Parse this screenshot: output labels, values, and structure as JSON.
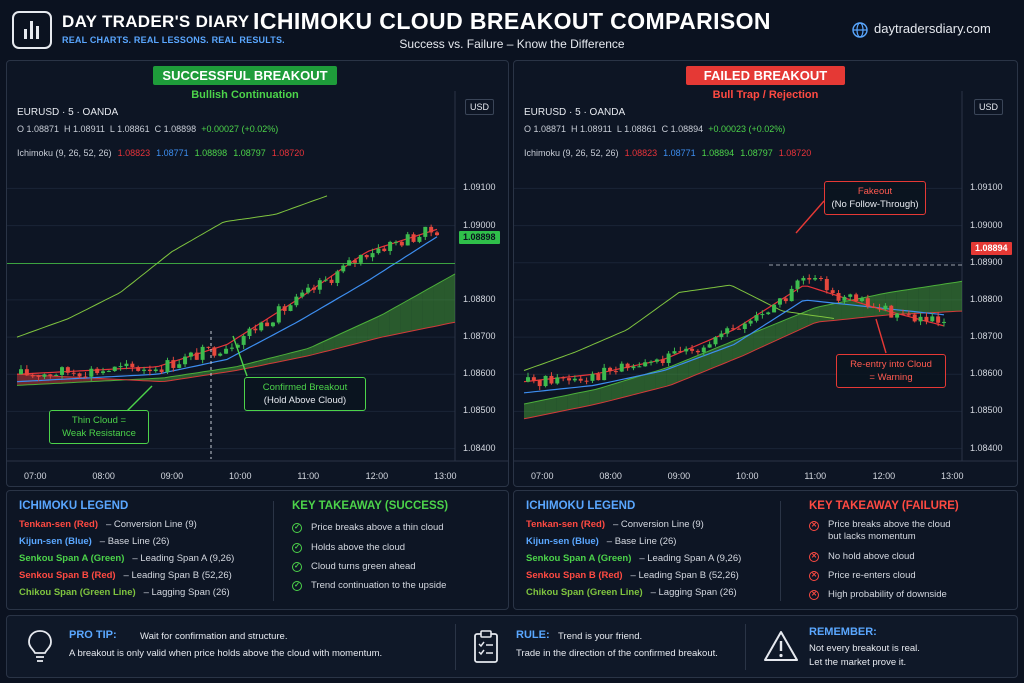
{
  "header": {
    "brand_name": "DAY TRADER'S DIARY",
    "brand_tagline": "REAL CHARTS. REAL LESSONS. REAL RESULTS.",
    "title": "ICHIMOKU CLOUD BREAKOUT COMPARISON",
    "subtitle": "Success vs. Failure – Know the Difference",
    "website": "daytradersdiary.com"
  },
  "colors": {
    "background": "#0b1220",
    "accent_blue": "#5aa7ff",
    "tenkan": "#e8333a",
    "kijun": "#3d8ef0",
    "span_a": "#4caf3a",
    "span_b": "#d33a3a",
    "chikou": "#7fc43f",
    "bull_candle": "#3dbb4e",
    "bear_candle": "#e5483d",
    "success": "#1e9c3a",
    "failure": "#e53935"
  },
  "left_panel": {
    "badge": "SUCCESSFUL BREAKOUT",
    "subtitle": "Bullish Continuation",
    "symbol": "EURUSD · 5 · OANDA",
    "ohlc": {
      "o": "O 1.08871",
      "h": "H 1.08911",
      "l": "L 1.08861",
      "c": "C 1.08898",
      "chg": "+0.00027 (+0.02%)"
    },
    "ichimoku": {
      "label": "Ichimoku (9, 26, 52, 26)",
      "v1": "1.08823",
      "v2": "1.08771",
      "v3": "1.08898",
      "v4": "1.08797",
      "v5": "1.08720"
    },
    "currency": "USD",
    "price_tag": "1.08898",
    "annotations": {
      "breakout_line1": "Confirmed Breakout",
      "breakout_line2": "(Hold Above Cloud)",
      "thin_line1": "Thin Cloud =",
      "thin_line2": "Weak Resistance"
    }
  },
  "right_panel": {
    "badge": "FAILED BREAKOUT",
    "subtitle": "Bull Trap / Rejection",
    "symbol": "EURUSD · 5 · OANDA",
    "ohlc": {
      "o": "O 1.08871",
      "h": "H 1.08911",
      "l": "L 1.08861",
      "c": "C 1.08894",
      "chg": "+0.00023 (+0.02%)"
    },
    "ichimoku": {
      "label": "Ichimoku (9, 26, 52, 26)",
      "v1": "1.08823",
      "v2": "1.08771",
      "v3": "1.08894",
      "v4": "1.08797",
      "v5": "1.08720"
    },
    "currency": "USD",
    "price_tag": "1.08894",
    "annotations": {
      "fake_line1": "Fakeout",
      "fake_line2": "(No Follow-Through)",
      "reentry_line1": "Re-entry into Cloud",
      "reentry_line2": "= Warning"
    }
  },
  "chart_data": [
    {
      "type": "line",
      "title": "SUCCESSFUL BREAKOUT",
      "subtitle": "Bullish Continuation",
      "x": [
        "07:00",
        "08:00",
        "09:00",
        "10:00",
        "11:00",
        "12:00",
        "13:00"
      ],
      "y_ticks": [
        "1.08400",
        "1.08500",
        "1.08600",
        "1.08700",
        "1.08800",
        "1.09000",
        "1.09100"
      ],
      "ylim": [
        1.0838,
        1.0912
      ],
      "last_price": 1.08898,
      "series": [
        {
          "name": "Tenkan-sen (Red)",
          "values": [
            1.086,
            1.0861,
            1.0862,
            1.0868,
            1.088,
            1.0893,
            1.0899
          ]
        },
        {
          "name": "Kijun-sen (Blue)",
          "values": [
            1.0858,
            1.0859,
            1.086,
            1.0864,
            1.0874,
            1.0885,
            1.0897
          ]
        },
        {
          "name": "Senkou Span A (Green)",
          "values": [
            1.0857,
            1.0858,
            1.0859,
            1.0862,
            1.0867,
            1.0876,
            1.0887
          ]
        },
        {
          "name": "Senkou Span B (Red)",
          "values": [
            1.086,
            1.0859,
            1.0858,
            1.0861,
            1.0865,
            1.087,
            1.0874
          ]
        },
        {
          "name": "Chikou Span (Green Line)",
          "values": [
            1.087,
            1.0875,
            1.0882,
            1.0893,
            1.0901,
            1.0903,
            1.0908
          ]
        }
      ]
    },
    {
      "type": "line",
      "title": "FAILED BREAKOUT",
      "subtitle": "Bull Trap / Rejection",
      "x": [
        "07:00",
        "08:00",
        "09:00",
        "10:00",
        "11:00",
        "12:00",
        "13:00"
      ],
      "y_ticks": [
        "1.08400",
        "1.08500",
        "1.08600",
        "1.08700",
        "1.08800",
        "1.08900",
        "1.09000",
        "1.09100"
      ],
      "ylim": [
        1.0838,
        1.0912
      ],
      "last_price": 1.08894,
      "series": [
        {
          "name": "Tenkan-sen (Red)",
          "values": [
            1.0858,
            1.086,
            1.0864,
            1.0872,
            1.0884,
            1.0878,
            1.0873
          ]
        },
        {
          "name": "Kijun-sen (Blue)",
          "values": [
            1.0855,
            1.0857,
            1.0861,
            1.0868,
            1.088,
            1.0878,
            1.0876
          ]
        },
        {
          "name": "Senkou Span A (Green)",
          "values": [
            1.0852,
            1.0856,
            1.0862,
            1.087,
            1.0878,
            1.0882,
            1.0885
          ]
        },
        {
          "name": "Senkou Span B (Red)",
          "values": [
            1.0848,
            1.0852,
            1.0857,
            1.0865,
            1.0874,
            1.0876,
            1.0877
          ]
        },
        {
          "name": "Chikou Span (Green Line)",
          "values": [
            1.0861,
            1.0866,
            1.0872,
            1.0882,
            1.0884,
            1.0877,
            1.0875
          ]
        }
      ]
    }
  ],
  "legend_left": {
    "title": "ICHIMOKU LEGEND",
    "rows": [
      {
        "name": "Tenkan-sen (Red)",
        "desc": "– Conversion Line (9)"
      },
      {
        "name": "Kijun-sen (Blue)",
        "desc": "– Base Line (26)"
      },
      {
        "name": "Senkou Span A (Green)",
        "desc": "– Leading Span A (9,26)"
      },
      {
        "name": "Senkou Span B (Red)",
        "desc": "– Leading Span B (52,26)"
      },
      {
        "name": "Chikou Span (Green Line)",
        "desc": "– Lagging Span (26)"
      }
    ]
  },
  "takeaway_success": {
    "title": "KEY TAKEAWAY (SUCCESS)",
    "items": [
      "Price breaks above a thin cloud",
      "Holds above the cloud",
      "Cloud turns green ahead",
      "Trend continuation to the upside"
    ]
  },
  "legend_right": {
    "title": "ICHIMOKU LEGEND",
    "rows": [
      {
        "name": "Tenkan-sen (Red)",
        "desc": "– Conversion Line (9)"
      },
      {
        "name": "Kijun-sen (Blue)",
        "desc": "– Base Line (26)"
      },
      {
        "name": "Senkou Span A (Green)",
        "desc": "– Leading Span A (9,26)"
      },
      {
        "name": "Senkou Span B (Red)",
        "desc": "– Leading Span B (52,26)"
      },
      {
        "name": "Chikou Span (Green Line)",
        "desc": "– Lagging Span (26)"
      }
    ]
  },
  "takeaway_failure": {
    "title": "KEY TAKEAWAY (FAILURE)",
    "item1a": "Price breaks above the cloud",
    "item1b": "but lacks momentum",
    "item2": "No hold above cloud",
    "item3": "Price re-enters cloud",
    "item4": "High probability of downside"
  },
  "footer": {
    "pro_tip_title": "PRO TIP:",
    "pro_tip_line1": "Wait for confirmation and structure.",
    "pro_tip_line2": "A breakout is only valid when price holds above the cloud with momentum.",
    "rule_title": "RULE:",
    "rule_line1": "Trend is your friend.",
    "rule_line2": "Trade in the direction of the confirmed breakout.",
    "remember_title": "REMEMBER:",
    "remember_line1": "Not every breakout is real.",
    "remember_line2": "Let the market prove it."
  }
}
